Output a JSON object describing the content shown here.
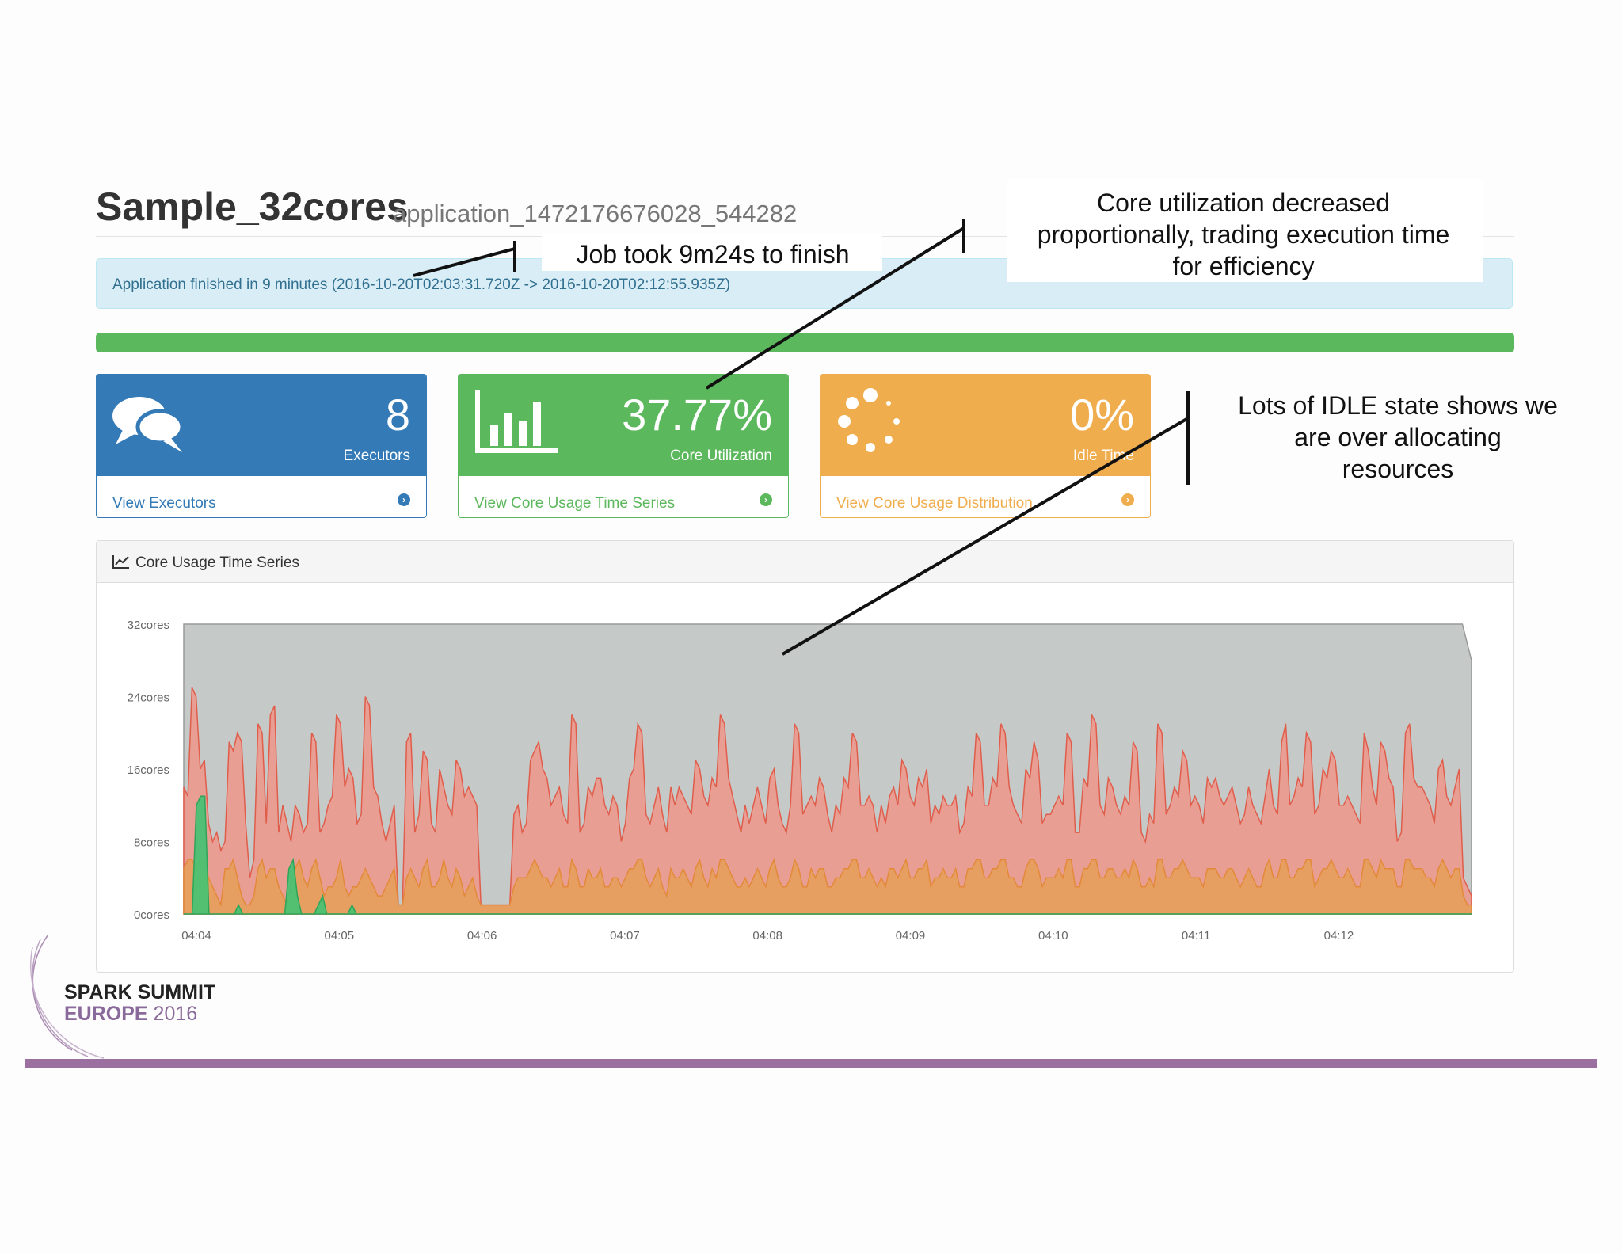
{
  "header": {
    "app_name": "Sample_32cores",
    "app_id": "application_1472176676028_544282"
  },
  "alert": {
    "text": "Application finished in 9 minutes (2016-10-20T02:03:31.720Z -> 2016-10-20T02:12:55.935Z)"
  },
  "progress": {
    "value": 1.0,
    "color": "#5cb85c"
  },
  "panels": [
    {
      "value": "8",
      "label": "Executors",
      "link": "View Executors",
      "icon": "comments-icon",
      "color": "#337ab7"
    },
    {
      "value": "37.77%",
      "label": "Core Utilization",
      "link": "View Core Usage Time Series",
      "icon": "bar-chart-icon",
      "color": "#5cb85c"
    },
    {
      "value": "0%",
      "label": "Idle Time",
      "link": "View Core Usage Distribution",
      "icon": "spinner-icon",
      "color": "#f0ad4e"
    }
  ],
  "chart_panel": {
    "title": "Core Usage Time Series",
    "icon": "line-chart-icon"
  },
  "chart_data": {
    "type": "area",
    "title": "Core Usage Time Series",
    "y_tick_labels": [
      "0cores",
      "8cores",
      "16cores",
      "24cores",
      "32cores"
    ],
    "x_tick_labels": [
      "04:04",
      "04:05",
      "04:06",
      "04:07",
      "04:08",
      "04:09",
      "04:10",
      "04:11",
      "04:12"
    ],
    "ylim": [
      0,
      32
    ],
    "grid": false,
    "colors": {
      "idle": "#c5c9c8",
      "red": "#ec9a8e",
      "orange": "#e5a05c",
      "green": "#45c173"
    },
    "series": [
      {
        "values": [
          32,
          32,
          32,
          32,
          32,
          32,
          32,
          32,
          32,
          32,
          32,
          32,
          32,
          32,
          32,
          32,
          32,
          32,
          32,
          32,
          32,
          32,
          32,
          32,
          32,
          32,
          32,
          32,
          32,
          32,
          32,
          32,
          32,
          32,
          32,
          32,
          32,
          32,
          32,
          32,
          32,
          32,
          32,
          32,
          32,
          32,
          32,
          32,
          32,
          32,
          32,
          32,
          32,
          32,
          32,
          32,
          32,
          32,
          32,
          32,
          32,
          32,
          32,
          32,
          32,
          32,
          32,
          32,
          32,
          32,
          32,
          32,
          32,
          32,
          32,
          32,
          32,
          32,
          32,
          32,
          32,
          32,
          32,
          32,
          32,
          32,
          32,
          32,
          32,
          32,
          32,
          32,
          32,
          32,
          32,
          32,
          32,
          32,
          32,
          32,
          32,
          32,
          32,
          32,
          32,
          32,
          32,
          32,
          32,
          32,
          32,
          32,
          32,
          32,
          32,
          32,
          32,
          32,
          32,
          32,
          32,
          32,
          32,
          32,
          32,
          32,
          32,
          32,
          32,
          32,
          32,
          32,
          32,
          32,
          32,
          32,
          32,
          32,
          32,
          32,
          32,
          32,
          32,
          32,
          32,
          32,
          32,
          32,
          32,
          32,
          32,
          32,
          32,
          32,
          32,
          32,
          32,
          32,
          32,
          32,
          32,
          32,
          32,
          32,
          32,
          32,
          32,
          32,
          32,
          32,
          32,
          32,
          32,
          32,
          32,
          32,
          32,
          32,
          32,
          32,
          32,
          32,
          32,
          32,
          32,
          32,
          32,
          32,
          32,
          32,
          32,
          32,
          32,
          32,
          32,
          32,
          32,
          32,
          32,
          32,
          32,
          32,
          32,
          32,
          32,
          32,
          32,
          32,
          32,
          32,
          32,
          32,
          32,
          32,
          32,
          32,
          32,
          32,
          32,
          32,
          32,
          32,
          32,
          32,
          32,
          32,
          32,
          32,
          32,
          32,
          32,
          32,
          32,
          32,
          32,
          32,
          32,
          32,
          32,
          32,
          32,
          32,
          32,
          32,
          32,
          32,
          32,
          32,
          32,
          32,
          32,
          32,
          32,
          32,
          32,
          32,
          32,
          32,
          32,
          32,
          32,
          32,
          32,
          32,
          32,
          32,
          32,
          32,
          32,
          32,
          32,
          32,
          32,
          32,
          32,
          32,
          32,
          32,
          32,
          32,
          30,
          28
        ]
      },
      {
        "values": [
          14,
          13,
          25,
          24,
          16,
          17,
          10,
          8,
          9,
          7,
          8,
          19,
          18,
          20,
          19,
          10,
          4,
          6,
          21,
          20,
          10,
          22,
          23,
          9,
          12,
          10,
          8,
          12,
          11,
          9,
          10,
          20,
          19,
          9,
          10,
          12,
          13,
          22,
          21,
          14,
          16,
          15,
          10,
          11,
          24,
          23,
          14,
          13,
          10,
          8,
          10,
          12,
          1,
          1,
          19,
          20,
          9,
          11,
          18,
          17,
          10,
          9,
          16,
          14,
          12,
          11,
          17,
          16,
          13,
          14,
          13,
          12,
          1,
          1,
          1,
          1,
          1,
          1,
          1,
          1,
          11,
          12,
          9,
          10,
          17,
          18,
          19,
          16,
          15,
          12,
          13,
          14,
          11,
          10,
          22,
          21,
          9,
          10,
          14,
          13,
          15,
          15,
          12,
          11,
          13,
          12,
          8,
          10,
          15,
          16,
          21,
          20,
          11,
          10,
          12,
          14,
          11,
          9,
          14,
          12,
          14,
          13,
          12,
          11,
          17,
          16,
          13,
          12,
          15,
          14,
          22,
          21,
          15,
          13,
          11,
          9,
          12,
          10,
          12,
          14,
          12,
          10,
          15,
          16,
          12,
          10,
          9,
          12,
          21,
          20,
          11,
          12,
          13,
          12,
          15,
          14,
          11,
          9,
          12,
          11,
          15,
          14,
          20,
          19,
          12,
          12,
          13,
          12,
          9,
          12,
          10,
          13,
          14,
          12,
          17,
          16,
          13,
          12,
          15,
          14,
          16,
          10,
          12,
          11,
          13,
          12,
          12,
          13,
          9,
          10,
          14,
          13,
          20,
          19,
          12,
          12,
          15,
          14,
          21,
          20,
          14,
          12,
          11,
          10,
          16,
          15,
          19,
          17,
          10,
          11,
          11,
          12,
          13,
          12,
          20,
          19,
          9,
          9,
          15,
          14,
          22,
          21,
          12,
          11,
          15,
          14,
          12,
          11,
          13,
          12,
          19,
          18,
          9,
          8,
          11,
          10,
          21,
          20,
          11,
          12,
          14,
          13,
          18,
          17,
          12,
          13,
          12,
          10,
          15,
          14,
          15,
          13,
          12,
          13,
          14,
          12,
          10,
          11,
          14,
          12,
          11,
          10,
          13,
          16,
          12,
          11,
          19,
          21,
          12,
          13,
          15,
          14,
          20,
          19,
          11,
          12,
          16,
          15,
          18,
          17,
          12,
          12,
          13,
          12,
          11,
          10,
          20,
          18,
          14,
          12,
          19,
          18,
          15,
          14,
          8,
          9,
          20,
          21,
          15,
          14,
          14,
          13,
          12,
          10,
          16,
          17,
          13,
          12,
          14,
          16,
          4,
          3,
          2
        ]
      },
      {
        "values": [
          5,
          6,
          6,
          5,
          6,
          6,
          4,
          3,
          2,
          1,
          5,
          5,
          6,
          4,
          2,
          1,
          1,
          2,
          5,
          6,
          4,
          5,
          5,
          3,
          2,
          1,
          3,
          5,
          6,
          4,
          3,
          5,
          6,
          4,
          2,
          3,
          3,
          4,
          6,
          3,
          2,
          3,
          3,
          4,
          5,
          4,
          3,
          2,
          2,
          3,
          4,
          5,
          1,
          1,
          4,
          5,
          4,
          3,
          5,
          6,
          3,
          3,
          4,
          6,
          4,
          3,
          5,
          4,
          2,
          3,
          4,
          2,
          1,
          1,
          1,
          1,
          1,
          1,
          1,
          1,
          3,
          4,
          4,
          4,
          5,
          6,
          5,
          4,
          4,
          3,
          4,
          5,
          3,
          3,
          6,
          5,
          3,
          3,
          5,
          4,
          4,
          5,
          3,
          3,
          4,
          4,
          3,
          4,
          5,
          5,
          6,
          6,
          4,
          3,
          4,
          5,
          3,
          2,
          5,
          4,
          4,
          5,
          4,
          3,
          5,
          6,
          4,
          3,
          5,
          4,
          6,
          6,
          5,
          4,
          3,
          3,
          4,
          3,
          4,
          5,
          4,
          3,
          5,
          6,
          4,
          3,
          3,
          4,
          6,
          5,
          3,
          3,
          5,
          4,
          5,
          5,
          3,
          3,
          4,
          4,
          5,
          5,
          6,
          6,
          4,
          4,
          5,
          4,
          3,
          4,
          3,
          5,
          5,
          4,
          5,
          6,
          4,
          4,
          5,
          5,
          6,
          3,
          4,
          4,
          5,
          4,
          4,
          5,
          3,
          3,
          5,
          5,
          6,
          6,
          4,
          4,
          5,
          5,
          6,
          6,
          4,
          4,
          3,
          3,
          5,
          6,
          6,
          5,
          3,
          4,
          4,
          4,
          5,
          4,
          6,
          6,
          3,
          3,
          5,
          5,
          6,
          6,
          4,
          4,
          5,
          5,
          4,
          4,
          5,
          4,
          6,
          5,
          3,
          3,
          4,
          3,
          6,
          6,
          4,
          4,
          5,
          5,
          6,
          5,
          4,
          4,
          4,
          3,
          5,
          5,
          5,
          4,
          4,
          5,
          5,
          4,
          3,
          4,
          5,
          4,
          3,
          3,
          5,
          6,
          4,
          4,
          6,
          6,
          4,
          4,
          5,
          5,
          6,
          6,
          3,
          4,
          5,
          5,
          6,
          5,
          4,
          4,
          5,
          4,
          3,
          3,
          6,
          6,
          5,
          4,
          6,
          5,
          5,
          5,
          3,
          3,
          6,
          6,
          5,
          5,
          5,
          4,
          4,
          3,
          5,
          6,
          5,
          4,
          5,
          5,
          2,
          1,
          1
        ]
      },
      {
        "values": [
          0,
          0,
          0,
          12,
          13,
          13,
          0,
          0,
          0,
          0,
          0,
          0,
          0,
          1,
          0,
          0,
          0,
          0,
          0,
          0,
          0,
          0,
          0,
          0,
          0,
          5,
          6,
          2,
          0,
          0,
          0,
          0,
          1,
          2,
          0,
          0,
          0,
          0,
          0,
          0,
          1,
          0,
          0,
          0,
          0,
          0,
          0,
          0,
          0,
          0,
          0,
          0,
          0,
          0,
          0,
          0,
          0,
          0,
          0,
          0,
          0,
          0,
          0,
          0,
          0,
          0,
          0,
          0,
          0,
          0,
          0,
          0,
          0,
          0,
          0,
          0,
          0,
          0,
          0,
          0,
          0,
          0,
          0,
          0,
          0,
          0,
          0,
          0,
          0,
          0,
          0,
          0,
          0,
          0,
          0,
          0,
          0,
          0,
          0,
          0,
          0,
          0,
          0,
          0,
          0,
          0,
          0,
          0,
          0,
          0,
          0,
          0,
          0,
          0,
          0,
          0,
          0,
          0,
          0,
          0,
          0,
          0,
          0,
          0,
          0,
          0,
          0,
          0,
          0,
          0,
          0,
          0,
          0,
          0,
          0,
          0,
          0,
          0,
          0,
          0,
          0,
          0,
          0,
          0,
          0,
          0,
          0,
          0,
          0,
          0,
          0,
          0,
          0,
          0,
          0,
          0,
          0,
          0,
          0,
          0,
          0,
          0,
          0,
          0,
          0,
          0,
          0,
          0,
          0,
          0,
          0,
          0,
          0,
          0,
          0,
          0,
          0,
          0,
          0,
          0,
          0,
          0,
          0,
          0,
          0,
          0,
          0,
          0,
          0,
          0,
          0,
          0,
          0,
          0,
          0,
          0,
          0,
          0,
          0,
          0,
          0,
          0,
          0,
          0,
          0,
          0,
          0,
          0,
          0,
          0,
          0,
          0,
          0,
          0,
          0,
          0,
          0,
          0,
          0,
          0,
          0,
          0,
          0,
          0,
          0,
          0,
          0,
          0,
          0,
          0,
          0,
          0,
          0,
          0,
          0,
          0,
          0,
          0,
          0,
          0,
          0,
          0,
          0,
          0,
          0,
          0,
          0,
          0,
          0,
          0,
          0,
          0,
          0,
          0,
          0,
          0,
          0,
          0,
          0,
          0,
          0,
          0,
          0,
          0,
          0,
          0,
          0,
          0,
          0,
          0,
          0,
          0,
          0,
          0,
          0,
          0,
          0,
          0,
          0,
          0,
          0,
          0,
          0,
          0,
          0,
          0,
          0,
          0,
          0,
          0,
          0,
          0,
          0,
          0,
          0,
          0,
          0,
          0,
          0,
          0,
          0,
          0,
          0,
          0,
          0,
          0,
          0
        ]
      }
    ]
  },
  "annotations": [
    "Job took 9m24s to finish",
    "Core utilization decreased proportionally, trading execution time for efficiency",
    "Lots of IDLE state shows we are over allocating resources"
  ],
  "branding": {
    "line1": "SPARK SUMMIT",
    "line2_main": "EUROPE",
    "line2_year": "2016",
    "accent": "#9b6fa0"
  }
}
